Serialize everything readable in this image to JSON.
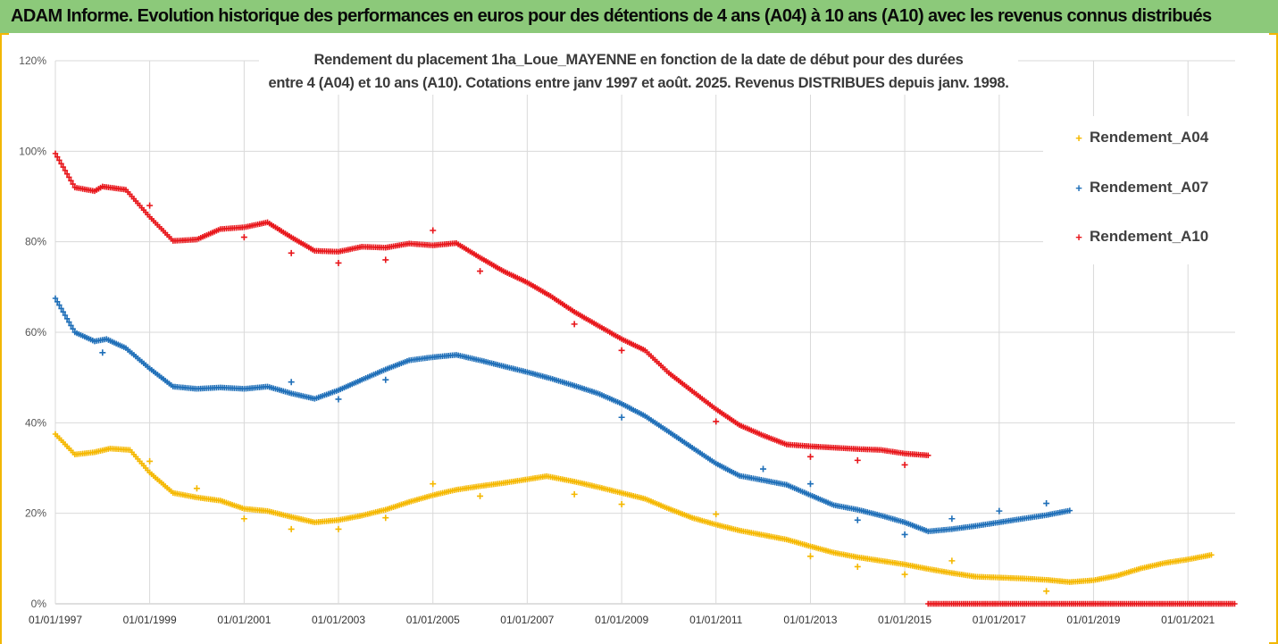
{
  "banner": {
    "title": "ADAM Informe. Evolution historique des performances en euros pour des détentions de 4 ans (A04) à 10 ans (A10) avec les revenus connus distribués"
  },
  "colors": {
    "banner_bg": "#8cc97a",
    "frame": "#f2b705",
    "A04": "#f5b800",
    "A07": "#1f6fb8",
    "A10": "#e8161b",
    "grid": "#d9d9d9"
  },
  "chart_data": {
    "type": "scatter",
    "title": "Rendement du placement 1ha_Loue_MAYENNE en fonction de la date de début pour des durées",
    "subtitle": "entre 4 (A04) et 10 ans (A10). Cotations entre janv 1997 et août. 2025. Revenus DISTRIBUES depuis janv. 1998.",
    "xlabel": "",
    "ylabel": "",
    "x_type": "date",
    "xlim": [
      "1997-01-01",
      "2022-01-01"
    ],
    "ylim": [
      0,
      120
    ],
    "y_ticks": [
      "0%",
      "20%",
      "40%",
      "60%",
      "80%",
      "100%",
      "120%"
    ],
    "x_ticks": [
      "01/01/1997",
      "01/01/1999",
      "01/01/2001",
      "01/01/2003",
      "01/01/2005",
      "01/01/2007",
      "01/01/2009",
      "01/01/2011",
      "01/01/2013",
      "01/01/2015",
      "01/01/2017",
      "01/01/2019",
      "01/01/2021"
    ],
    "grid": true,
    "legend_position": "right",
    "series": [
      {
        "name": "Rendement_A04",
        "marker": "+",
        "points": [
          [
            "1997-01-01",
            37.5
          ],
          [
            "1997-06-01",
            33
          ],
          [
            "1997-11-01",
            33.5
          ],
          [
            "1998-03-01",
            34.3
          ],
          [
            "1998-08-01",
            34
          ],
          [
            "1999-01-01",
            29
          ],
          [
            "1999-07-01",
            24.5
          ],
          [
            "2000-01-01",
            23.5
          ],
          [
            "2000-07-01",
            22.8
          ],
          [
            "2001-01-01",
            21
          ],
          [
            "2001-07-01",
            20.5
          ],
          [
            "2002-01-01",
            19.2
          ],
          [
            "2002-07-01",
            18
          ],
          [
            "2003-01-01",
            18.5
          ],
          [
            "2003-07-01",
            19.5
          ],
          [
            "2004-01-01",
            20.8
          ],
          [
            "2004-07-01",
            22.5
          ],
          [
            "2005-01-01",
            24
          ],
          [
            "2005-07-01",
            25.2
          ],
          [
            "2006-01-01",
            26
          ],
          [
            "2006-07-01",
            26.7
          ],
          [
            "2007-01-01",
            27.5
          ],
          [
            "2007-06-01",
            28.2
          ],
          [
            "2008-01-01",
            27
          ],
          [
            "2008-07-01",
            25.8
          ],
          [
            "2009-01-01",
            24.5
          ],
          [
            "2009-07-01",
            23.2
          ],
          [
            "2010-01-01",
            21
          ],
          [
            "2010-07-01",
            19
          ],
          [
            "2011-01-01",
            17.5
          ],
          [
            "2011-07-01",
            16.2
          ],
          [
            "2012-01-01",
            15.2
          ],
          [
            "2012-07-01",
            14.2
          ],
          [
            "2013-01-01",
            12.7
          ],
          [
            "2013-07-01",
            11.3
          ],
          [
            "2014-01-01",
            10.3
          ],
          [
            "2014-07-01",
            9.5
          ],
          [
            "2015-01-01",
            8.7
          ],
          [
            "2015-07-01",
            7.7
          ],
          [
            "2016-01-01",
            6.8
          ],
          [
            "2016-07-01",
            6.0
          ],
          [
            "2017-01-01",
            5.8
          ],
          [
            "2017-07-01",
            5.6
          ],
          [
            "2018-01-01",
            5.3
          ],
          [
            "2018-07-01",
            4.8
          ],
          [
            "2019-01-01",
            5.2
          ],
          [
            "2019-07-01",
            6.2
          ],
          [
            "2020-01-01",
            7.8
          ],
          [
            "2020-07-01",
            9.0
          ],
          [
            "2021-01-01",
            9.8
          ],
          [
            "2021-07-01",
            10.8
          ]
        ],
        "outliers": [
          [
            "1999-01-01",
            31.5
          ],
          [
            "2000-01-01",
            25.5
          ],
          [
            "2001-01-01",
            18.8
          ],
          [
            "2002-01-01",
            16.5
          ],
          [
            "2003-01-01",
            16.5
          ],
          [
            "2004-01-01",
            19
          ],
          [
            "2005-01-01",
            26.5
          ],
          [
            "2006-01-01",
            23.8
          ],
          [
            "2008-01-01",
            24.2
          ],
          [
            "2009-01-01",
            22
          ],
          [
            "2011-01-01",
            19.8
          ],
          [
            "2013-01-01",
            10.5
          ],
          [
            "2014-01-01",
            8.2
          ],
          [
            "2015-01-01",
            6.5
          ],
          [
            "2016-01-01",
            9.5
          ],
          [
            "2018-01-01",
            2.8
          ]
        ]
      },
      {
        "name": "Rendement_A07",
        "marker": "+",
        "points": [
          [
            "1997-01-01",
            67.5
          ],
          [
            "1997-06-01",
            60
          ],
          [
            "1997-11-01",
            58
          ],
          [
            "1998-02-01",
            58.5
          ],
          [
            "1998-07-01",
            56.5
          ],
          [
            "1999-01-01",
            52
          ],
          [
            "1999-07-01",
            48
          ],
          [
            "2000-01-01",
            47.5
          ],
          [
            "2000-07-01",
            47.8
          ],
          [
            "2001-01-01",
            47.5
          ],
          [
            "2001-07-01",
            48
          ],
          [
            "2002-01-01",
            46.5
          ],
          [
            "2002-07-01",
            45.3
          ],
          [
            "2003-01-01",
            47.2
          ],
          [
            "2003-07-01",
            49.5
          ],
          [
            "2004-01-01",
            51.8
          ],
          [
            "2004-07-01",
            53.8
          ],
          [
            "2005-01-01",
            54.5
          ],
          [
            "2005-07-01",
            55
          ],
          [
            "2006-01-01",
            53.8
          ],
          [
            "2006-07-01",
            52.5
          ],
          [
            "2007-01-01",
            51.2
          ],
          [
            "2007-07-01",
            49.8
          ],
          [
            "2008-01-01",
            48.2
          ],
          [
            "2008-07-01",
            46.5
          ],
          [
            "2009-01-01",
            44.2
          ],
          [
            "2009-07-01",
            41.5
          ],
          [
            "2010-01-01",
            38
          ],
          [
            "2010-07-01",
            34.5
          ],
          [
            "2011-01-01",
            31
          ],
          [
            "2011-07-01",
            28.3
          ],
          [
            "2012-01-01",
            27.3
          ],
          [
            "2012-07-01",
            26.3
          ],
          [
            "2013-01-01",
            24
          ],
          [
            "2013-07-01",
            21.8
          ],
          [
            "2014-01-01",
            20.8
          ],
          [
            "2014-07-01",
            19.5
          ],
          [
            "2015-01-01",
            18
          ],
          [
            "2015-07-01",
            16
          ],
          [
            "2016-01-01",
            16.5
          ],
          [
            "2016-07-01",
            17.2
          ],
          [
            "2017-01-01",
            18
          ],
          [
            "2017-07-01",
            18.8
          ],
          [
            "2018-01-01",
            19.6
          ],
          [
            "2018-07-01",
            20.6
          ]
        ],
        "outliers": [
          [
            "1998-01-01",
            55.5
          ],
          [
            "2002-01-01",
            49
          ],
          [
            "2003-01-01",
            45.2
          ],
          [
            "2004-01-01",
            49.5
          ],
          [
            "2009-01-01",
            41.2
          ],
          [
            "2012-01-01",
            29.8
          ],
          [
            "2013-01-01",
            26.5
          ],
          [
            "2014-01-01",
            18.5
          ],
          [
            "2015-01-01",
            15.3
          ],
          [
            "2016-01-01",
            18.8
          ],
          [
            "2017-01-01",
            20.5
          ],
          [
            "2018-01-01",
            22.2
          ]
        ]
      },
      {
        "name": "Rendement_A10",
        "marker": "+",
        "points": [
          [
            "1997-01-01",
            99.5
          ],
          [
            "1997-06-01",
            92
          ],
          [
            "1997-11-01",
            91.2
          ],
          [
            "1998-01-01",
            92.2
          ],
          [
            "1998-07-01",
            91.5
          ],
          [
            "1999-01-01",
            85.5
          ],
          [
            "1999-07-01",
            80.2
          ],
          [
            "2000-01-01",
            80.5
          ],
          [
            "2000-07-01",
            82.8
          ],
          [
            "2001-01-01",
            83.2
          ],
          [
            "2001-07-01",
            84.3
          ],
          [
            "2002-01-01",
            81
          ],
          [
            "2002-07-01",
            78
          ],
          [
            "2003-01-01",
            77.8
          ],
          [
            "2003-07-01",
            78.9
          ],
          [
            "2004-01-01",
            78.7
          ],
          [
            "2004-07-01",
            79.6
          ],
          [
            "2005-01-01",
            79.2
          ],
          [
            "2005-07-01",
            79.7
          ],
          [
            "2006-01-01",
            76.5
          ],
          [
            "2006-07-01",
            73.5
          ],
          [
            "2007-01-01",
            71
          ],
          [
            "2007-07-01",
            68
          ],
          [
            "2008-01-01",
            64.5
          ],
          [
            "2008-07-01",
            61.5
          ],
          [
            "2009-01-01",
            58.5
          ],
          [
            "2009-07-01",
            56
          ],
          [
            "2010-01-01",
            51
          ],
          [
            "2010-07-01",
            47
          ],
          [
            "2011-01-01",
            43
          ],
          [
            "2011-07-01",
            39.5
          ],
          [
            "2012-01-01",
            37.2
          ],
          [
            "2012-07-01",
            35.2
          ],
          [
            "2013-01-01",
            34.8
          ],
          [
            "2013-07-01",
            34.5
          ],
          [
            "2014-01-01",
            34.2
          ],
          [
            "2014-07-01",
            34
          ],
          [
            "2015-01-01",
            33.2
          ],
          [
            "2015-07-01",
            32.8
          ]
        ],
        "outliers": [
          [
            "1999-01-01",
            88
          ],
          [
            "2001-01-01",
            81
          ],
          [
            "2002-01-01",
            77.5
          ],
          [
            "2003-01-01",
            75.3
          ],
          [
            "2004-01-01",
            76
          ],
          [
            "2005-01-01",
            82.5
          ],
          [
            "2006-01-01",
            73.5
          ],
          [
            "2008-01-01",
            61.8
          ],
          [
            "2009-01-01",
            56
          ],
          [
            "2011-01-01",
            40.3
          ],
          [
            "2013-01-01",
            32.5
          ],
          [
            "2014-01-01",
            31.7
          ],
          [
            "2015-01-01",
            30.7
          ]
        ],
        "zero_segment": [
          "2015-07-01",
          "2022-01-01"
        ]
      }
    ]
  }
}
